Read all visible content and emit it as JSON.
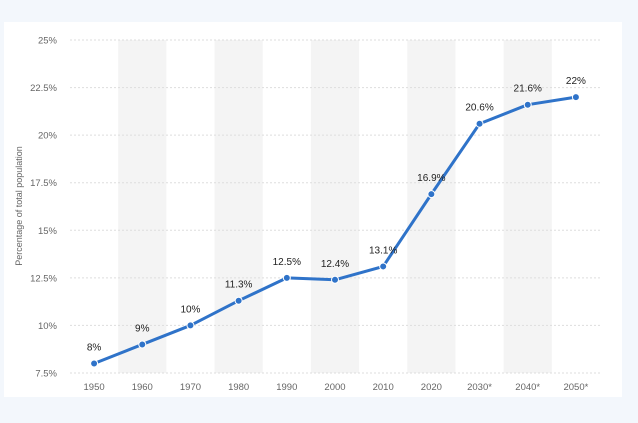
{
  "chart_data": {
    "type": "line",
    "ylabel": "Percentage of total population",
    "categories": [
      "1950",
      "1960",
      "1970",
      "1980",
      "1990",
      "2000",
      "2010",
      "2020",
      "2030*",
      "2040*",
      "2050*"
    ],
    "series": [
      {
        "values": [
          8,
          9,
          10,
          11.3,
          12.5,
          12.4,
          13.1,
          16.9,
          20.6,
          21.6,
          22
        ],
        "labels": [
          "8%",
          "9%",
          "10%",
          "11.3%",
          "12.5%",
          "12.4%",
          "13.1%",
          "16.9%",
          "20.6%",
          "21.6%",
          "22%"
        ]
      }
    ],
    "yticks": [
      "7.5%",
      "10%",
      "12.5%",
      "15%",
      "17.5%",
      "20%",
      "22.5%",
      "25%"
    ],
    "ylim": [
      7.5,
      25
    ],
    "grid": true,
    "line_color": "#2f73c9",
    "band_color": "#f4f4f4"
  }
}
